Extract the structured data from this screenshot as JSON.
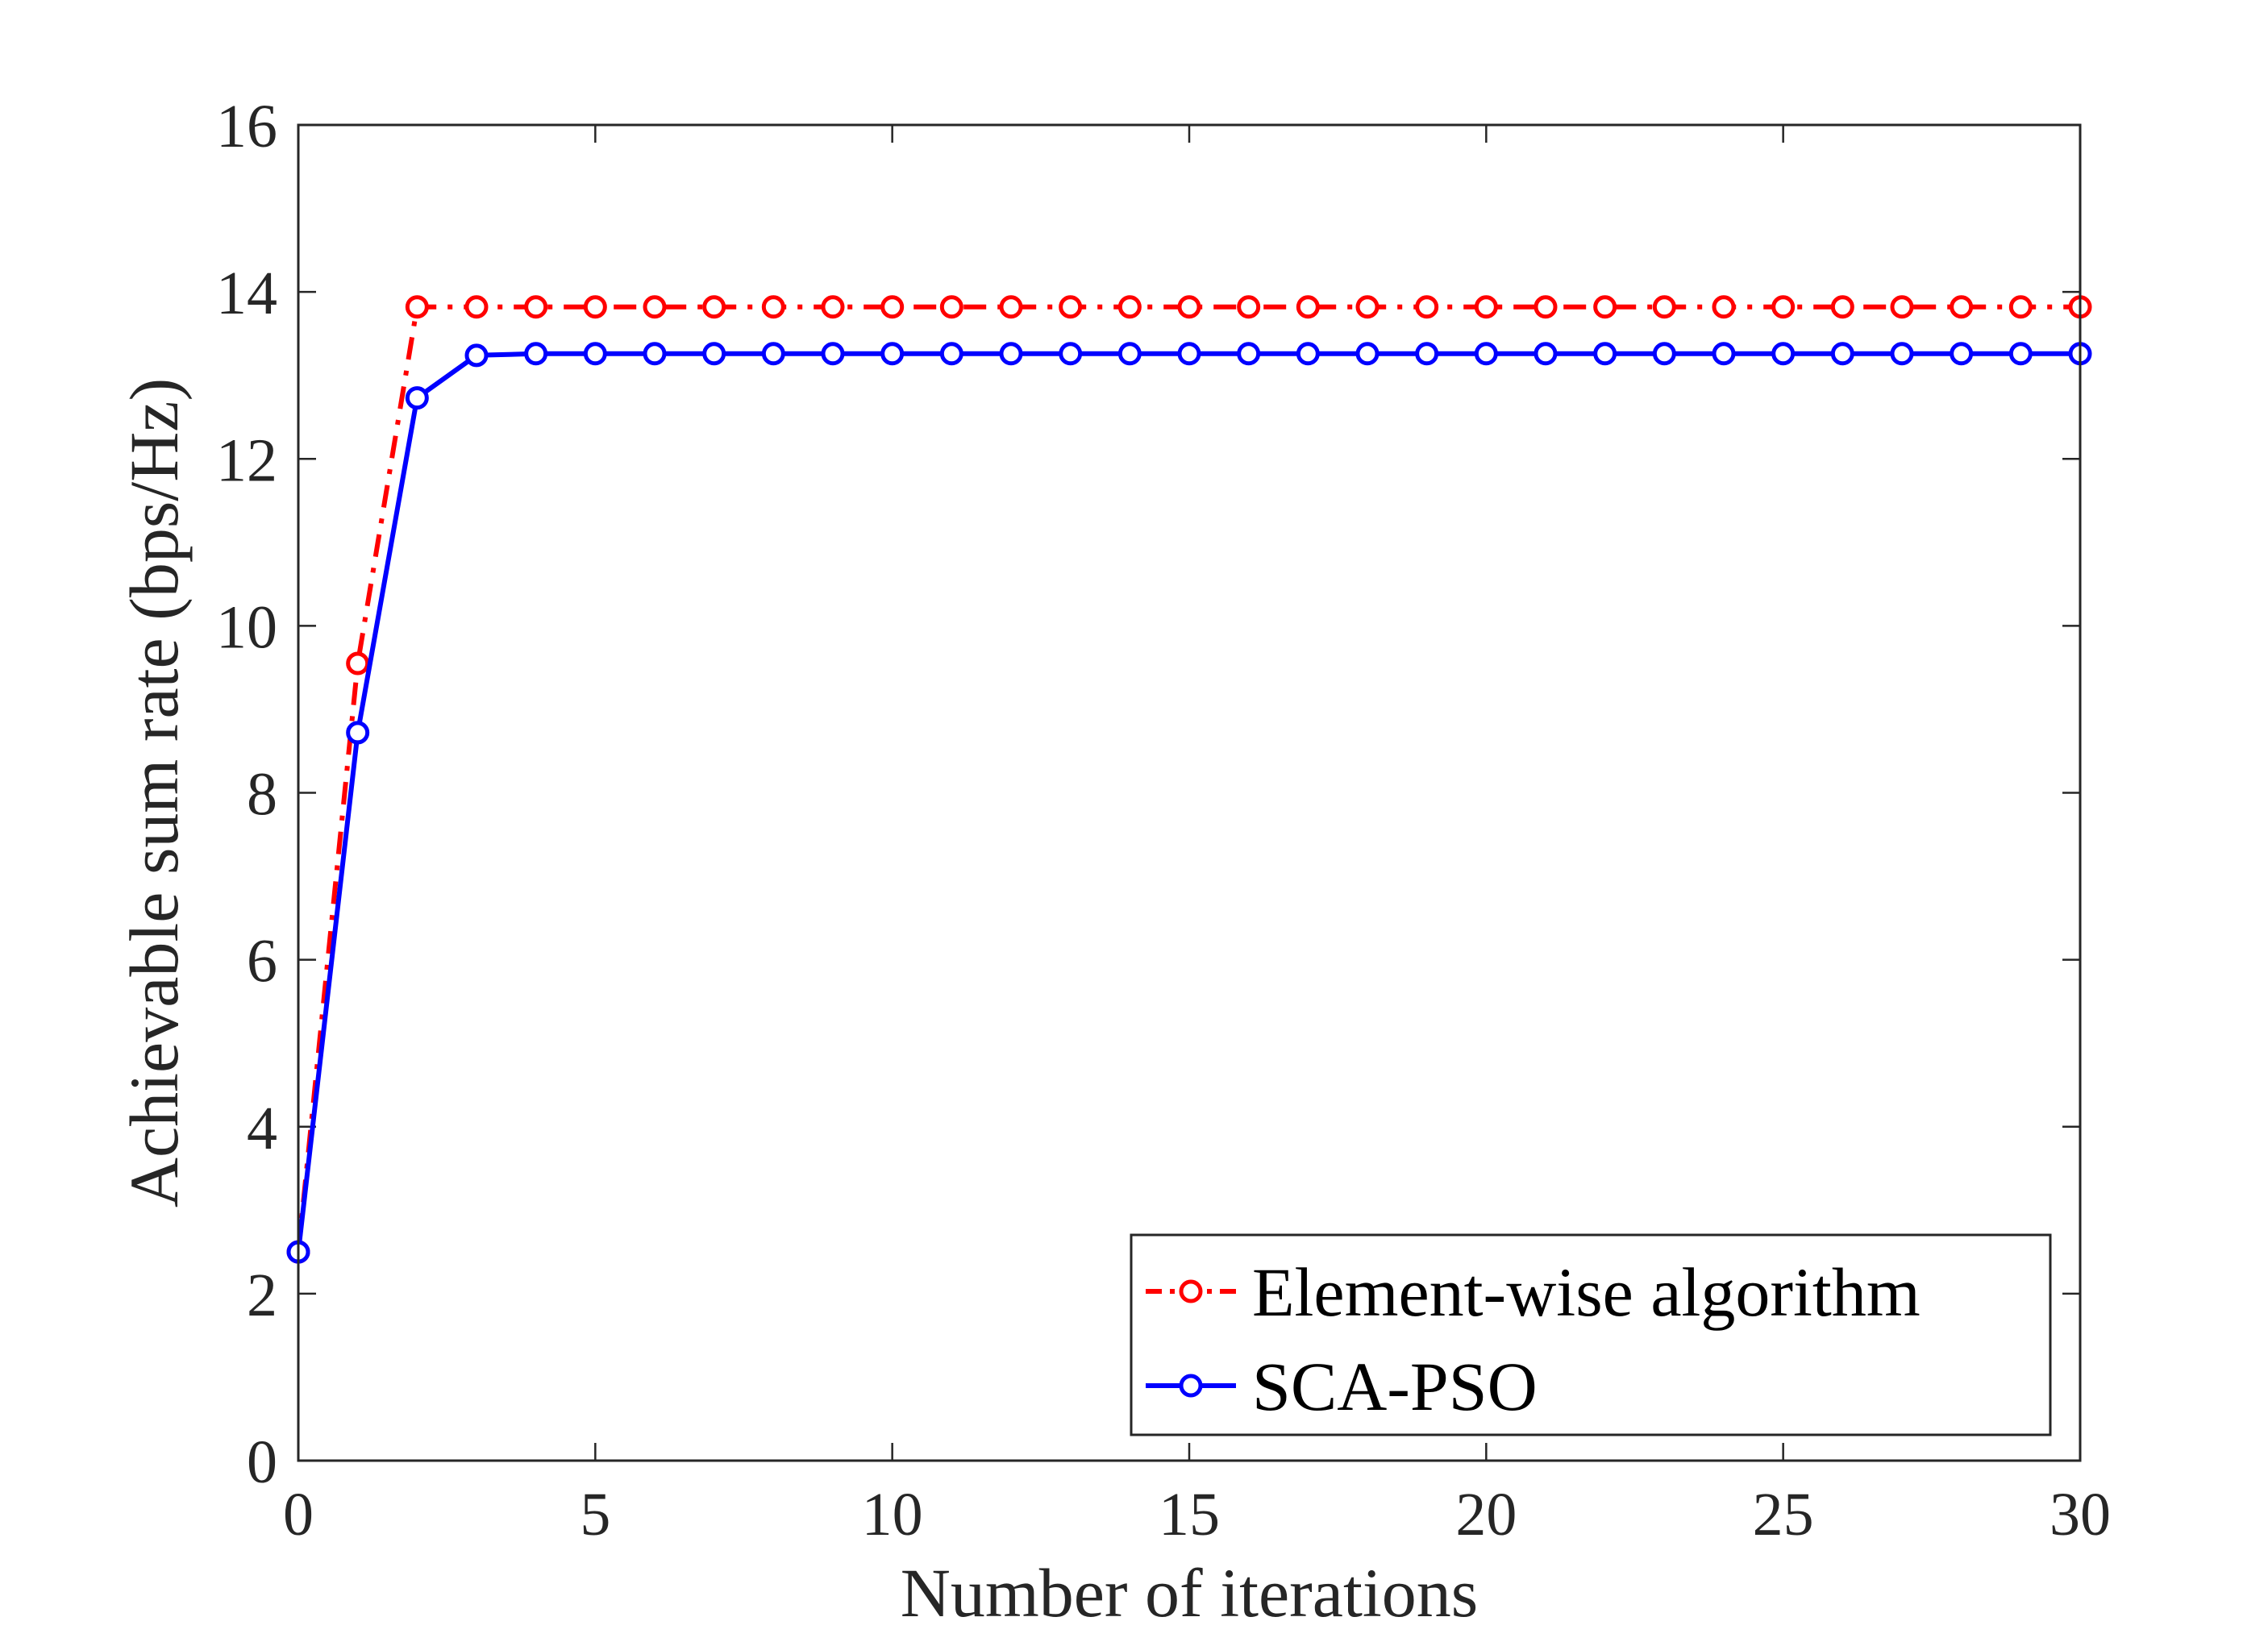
{
  "chart_data": {
    "type": "line",
    "title": "",
    "xlabel": "Number of iterations",
    "ylabel": "Achievable sum rate (bps/Hz)",
    "xlim": [
      0,
      30
    ],
    "ylim": [
      0,
      16
    ],
    "xticks": [
      0,
      5,
      10,
      15,
      20,
      25,
      30
    ],
    "yticks": [
      0,
      2,
      4,
      6,
      8,
      10,
      12,
      14,
      16
    ],
    "grid": false,
    "legend_position": "bottom-right",
    "x": [
      0,
      1,
      2,
      3,
      4,
      5,
      6,
      7,
      8,
      9,
      10,
      11,
      12,
      13,
      14,
      15,
      16,
      17,
      18,
      19,
      20,
      21,
      22,
      23,
      24,
      25,
      26,
      27,
      28,
      29,
      30
    ],
    "series": [
      {
        "name": "Element-wise algorithm",
        "color": "#ff0000",
        "line_style": "dash-dot",
        "marker": "circle",
        "values": [
          2.5,
          9.55,
          13.82,
          13.82,
          13.82,
          13.82,
          13.82,
          13.82,
          13.82,
          13.82,
          13.82,
          13.82,
          13.82,
          13.82,
          13.82,
          13.82,
          13.82,
          13.82,
          13.82,
          13.82,
          13.82,
          13.82,
          13.82,
          13.82,
          13.82,
          13.82,
          13.82,
          13.82,
          13.82,
          13.82,
          13.82
        ]
      },
      {
        "name": "SCA-PSO",
        "color": "#0000ff",
        "line_style": "solid",
        "marker": "circle",
        "values": [
          2.5,
          8.72,
          12.73,
          13.24,
          13.26,
          13.26,
          13.26,
          13.26,
          13.26,
          13.26,
          13.26,
          13.26,
          13.26,
          13.26,
          13.26,
          13.26,
          13.26,
          13.26,
          13.26,
          13.26,
          13.26,
          13.26,
          13.26,
          13.26,
          13.26,
          13.26,
          13.26,
          13.26,
          13.26,
          13.26,
          13.26
        ]
      }
    ]
  }
}
